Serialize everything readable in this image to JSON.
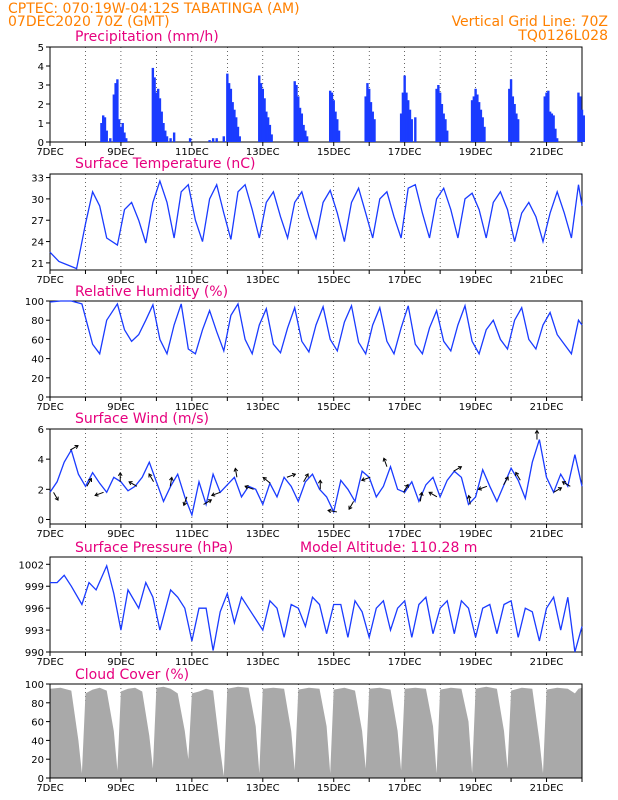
{
  "header": {
    "line1_left": "CPTEC:   070:19W-04:12S   TABATINGA (AM)",
    "line2_left": "07DEC2020 70Z (GMT)",
    "line2_right": "Vertical Grid Line: 70Z",
    "line3_right": "TQ0126L028"
  },
  "colors": {
    "header": "#ff8000",
    "panel_title": "#e6007e",
    "series": "#1a3bff",
    "bars": "#1a3bff",
    "cloud_fill": "#a9a9a9",
    "grid": "#000000"
  },
  "x_axis": {
    "day_labels": [
      "7DEC",
      "9DEC",
      "11DEC",
      "13DEC",
      "15DEC",
      "17DEC",
      "19DEC",
      "21DEC"
    ],
    "start_day": 7,
    "end_day": 22
  },
  "chart_data": [
    {
      "id": "precip",
      "type": "bar",
      "title": "Precipitation (mm/h)",
      "ylim": [
        0,
        5
      ],
      "yticks": [
        0,
        1,
        2,
        3,
        4,
        5
      ],
      "days": [
        8.45,
        8.5,
        8.55,
        8.6,
        8.7,
        8.8,
        8.85,
        8.9,
        8.95,
        9.0,
        9.05,
        9.1,
        9.15,
        9.9,
        9.95,
        10.0,
        10.05,
        10.1,
        10.15,
        10.2,
        10.25,
        10.3,
        10.4,
        10.5,
        10.95,
        11.5,
        11.6,
        11.7,
        11.9,
        12.0,
        12.05,
        12.1,
        12.15,
        12.2,
        12.25,
        12.3,
        12.35,
        12.9,
        12.95,
        13.0,
        13.05,
        13.1,
        13.15,
        13.2,
        13.25,
        13.9,
        13.95,
        14.0,
        14.05,
        14.1,
        14.15,
        14.2,
        14.25,
        14.9,
        14.95,
        15.0,
        15.05,
        15.1,
        15.15,
        15.9,
        15.95,
        16.0,
        16.05,
        16.1,
        16.15,
        16.9,
        16.95,
        17.0,
        17.05,
        17.1,
        17.15,
        17.2,
        17.3,
        17.9,
        17.95,
        18.0,
        18.05,
        18.1,
        18.15,
        18.2,
        18.9,
        18.95,
        19.0,
        19.05,
        19.1,
        19.15,
        19.2,
        19.25,
        19.95,
        20.0,
        20.05,
        20.1,
        20.15,
        20.2,
        20.95,
        21.0,
        21.05,
        21.1,
        21.15,
        21.2,
        21.25,
        21.3,
        21.9,
        21.95,
        22.0,
        22.05
      ],
      "values": [
        1.0,
        1.4,
        1.3,
        0.6,
        0.2,
        2.5,
        3.1,
        3.3,
        1.2,
        0.8,
        1.0,
        0.5,
        0.2,
        3.9,
        3.4,
        2.6,
        2.8,
        2.3,
        1.6,
        1.0,
        0.6,
        0.3,
        0.2,
        0.5,
        0.2,
        0.1,
        0.2,
        0.2,
        0.3,
        3.6,
        3.1,
        2.8,
        2.1,
        1.7,
        1.3,
        0.8,
        0.3,
        3.5,
        3.1,
        2.8,
        2.3,
        1.6,
        1.3,
        0.9,
        0.4,
        3.2,
        3.0,
        2.4,
        1.8,
        1.5,
        0.9,
        0.6,
        0.3,
        2.7,
        2.6,
        2.2,
        1.6,
        1.2,
        0.6,
        2.4,
        3.1,
        2.8,
        2.1,
        1.6,
        1.2,
        1.5,
        2.6,
        3.5,
        2.6,
        2.2,
        1.7,
        1.2,
        1.3,
        2.8,
        3.0,
        2.6,
        2.0,
        1.5,
        1.2,
        0.6,
        2.2,
        2.4,
        2.8,
        2.5,
        2.1,
        1.7,
        1.3,
        0.8,
        2.8,
        3.3,
        2.4,
        2.0,
        1.5,
        1.2,
        2.4,
        2.6,
        2.7,
        1.6,
        1.5,
        1.4,
        0.7,
        0.2,
        2.6,
        2.4,
        1.7,
        1.4
      ]
    },
    {
      "id": "temperature",
      "type": "line",
      "title": "Surface Temperature (nC)",
      "ylim": [
        20,
        33.5
      ],
      "yticks": [
        21,
        24,
        27,
        30,
        33
      ],
      "days": [
        7.0,
        7.25,
        7.5,
        7.75,
        8.0,
        8.2,
        8.4,
        8.6,
        8.9,
        9.1,
        9.3,
        9.5,
        9.7,
        9.9,
        10.1,
        10.3,
        10.5,
        10.7,
        10.9,
        11.1,
        11.3,
        11.5,
        11.7,
        11.9,
        12.1,
        12.3,
        12.5,
        12.7,
        12.9,
        13.1,
        13.3,
        13.5,
        13.7,
        13.9,
        14.1,
        14.3,
        14.5,
        14.7,
        14.9,
        15.1,
        15.3,
        15.5,
        15.7,
        15.9,
        16.1,
        16.3,
        16.5,
        16.7,
        16.9,
        17.1,
        17.3,
        17.5,
        17.7,
        17.9,
        18.1,
        18.3,
        18.5,
        18.7,
        18.9,
        19.1,
        19.3,
        19.5,
        19.7,
        19.9,
        20.1,
        20.3,
        20.5,
        20.7,
        20.9,
        21.1,
        21.3,
        21.5,
        21.7,
        21.9,
        22.0
      ],
      "values": [
        22.5,
        21.2,
        20.7,
        20.2,
        26.5,
        31.0,
        29.0,
        24.5,
        23.5,
        28.5,
        29.5,
        27.0,
        23.8,
        29.5,
        32.5,
        29.5,
        24.5,
        31.0,
        32.0,
        27.0,
        24.0,
        30.0,
        32.0,
        28.0,
        24.3,
        31.0,
        32.0,
        28.5,
        24.5,
        29.5,
        31.0,
        27.5,
        24.5,
        29.5,
        31.0,
        27.5,
        24.5,
        29.5,
        31.2,
        28.0,
        24.0,
        29.5,
        31.5,
        28.0,
        24.5,
        30.0,
        31.0,
        27.5,
        24.5,
        31.5,
        32.0,
        28.0,
        24.5,
        30.0,
        31.5,
        28.5,
        24.5,
        30.0,
        30.8,
        28.5,
        24.5,
        29.5,
        31.0,
        28.5,
        24.0,
        28.0,
        29.5,
        27.5,
        24.0,
        28.0,
        31.0,
        28.0,
        24.5,
        32.0,
        29.0
      ]
    },
    {
      "id": "humidity",
      "type": "line",
      "title": "Relative Humidity (%)",
      "ylim": [
        0,
        100
      ],
      "yticks": [
        0,
        20,
        40,
        60,
        80,
        100
      ],
      "days": [
        7.0,
        7.3,
        7.6,
        7.9,
        8.2,
        8.4,
        8.6,
        8.9,
        9.1,
        9.3,
        9.5,
        9.7,
        9.9,
        10.1,
        10.3,
        10.5,
        10.7,
        10.9,
        11.1,
        11.3,
        11.5,
        11.7,
        11.9,
        12.1,
        12.3,
        12.5,
        12.7,
        12.9,
        13.1,
        13.3,
        13.5,
        13.7,
        13.9,
        14.1,
        14.3,
        14.5,
        14.7,
        14.9,
        15.1,
        15.3,
        15.5,
        15.7,
        15.9,
        16.1,
        16.3,
        16.5,
        16.7,
        16.9,
        17.1,
        17.3,
        17.5,
        17.7,
        17.9,
        18.1,
        18.3,
        18.5,
        18.7,
        18.9,
        19.1,
        19.3,
        19.5,
        19.7,
        19.9,
        20.1,
        20.3,
        20.5,
        20.7,
        20.9,
        21.1,
        21.3,
        21.5,
        21.7,
        21.9,
        22.0
      ],
      "values": [
        99,
        100,
        100,
        97,
        55,
        45,
        80,
        97,
        70,
        58,
        65,
        80,
        96,
        60,
        45,
        75,
        97,
        50,
        45,
        70,
        90,
        68,
        48,
        85,
        97,
        60,
        45,
        75,
        92,
        55,
        46,
        72,
        93,
        58,
        47,
        75,
        94,
        60,
        48,
        78,
        95,
        57,
        45,
        75,
        93,
        58,
        45,
        72,
        95,
        55,
        45,
        72,
        90,
        58,
        48,
        75,
        95,
        58,
        45,
        70,
        80,
        60,
        50,
        80,
        93,
        60,
        50,
        75,
        88,
        65,
        55,
        45,
        80,
        75
      ]
    },
    {
      "id": "wind",
      "type": "line",
      "title": "Surface Wind (m/s)",
      "ylim": [
        -0.3,
        6
      ],
      "yticks": [
        0,
        2,
        4,
        6
      ],
      "days": [
        7.0,
        7.2,
        7.4,
        7.6,
        7.8,
        8.0,
        8.2,
        8.4,
        8.6,
        8.8,
        9.0,
        9.2,
        9.4,
        9.6,
        9.8,
        10.0,
        10.2,
        10.4,
        10.6,
        10.8,
        11.0,
        11.2,
        11.4,
        11.6,
        11.8,
        12.0,
        12.2,
        12.4,
        12.6,
        12.8,
        13.0,
        13.2,
        13.4,
        13.6,
        13.8,
        14.0,
        14.2,
        14.4,
        14.6,
        14.8,
        15.0,
        15.2,
        15.4,
        15.6,
        15.8,
        16.0,
        16.2,
        16.4,
        16.6,
        16.8,
        17.0,
        17.2,
        17.4,
        17.6,
        17.8,
        18.0,
        18.2,
        18.4,
        18.6,
        18.8,
        19.0,
        19.2,
        19.4,
        19.6,
        19.8,
        20.0,
        20.2,
        20.4,
        20.6,
        20.8,
        21.0,
        21.2,
        21.4,
        21.6,
        21.8,
        22.0
      ],
      "values": [
        1.8,
        2.5,
        3.8,
        4.6,
        3.0,
        2.2,
        3.1,
        2.4,
        1.8,
        2.8,
        2.5,
        1.9,
        2.2,
        2.8,
        3.8,
        2.5,
        1.2,
        2.2,
        3.0,
        1.5,
        0.3,
        2.5,
        1.0,
        3.0,
        1.8,
        2.3,
        2.8,
        1.5,
        2.2,
        2.0,
        1.0,
        2.4,
        1.5,
        2.8,
        2.2,
        1.2,
        2.5,
        3.0,
        2.0,
        1.5,
        0.5,
        2.6,
        2.0,
        1.2,
        3.2,
        2.8,
        1.5,
        2.2,
        3.5,
        2.0,
        1.8,
        2.5,
        1.2,
        2.3,
        2.8,
        1.5,
        2.6,
        3.2,
        2.8,
        1.0,
        1.5,
        3.3,
        2.2,
        1.2,
        2.3,
        3.4,
        2.6,
        1.4,
        3.8,
        5.3,
        2.8,
        1.8,
        3.0,
        2.2,
        4.3,
        2.2
      ]
    },
    {
      "id": "pressure",
      "type": "line",
      "title": "Surface Pressure (hPa)",
      "annotation": "Model Altitude: 110.28 m",
      "ylim": [
        990,
        1003
      ],
      "yticks": [
        990,
        993,
        996,
        999,
        1002
      ],
      "days": [
        7.0,
        7.2,
        7.4,
        7.6,
        7.9,
        8.1,
        8.3,
        8.6,
        8.8,
        9.0,
        9.2,
        9.5,
        9.7,
        9.9,
        10.1,
        10.4,
        10.6,
        10.8,
        11.0,
        11.2,
        11.4,
        11.6,
        11.8,
        12.0,
        12.2,
        12.4,
        12.6,
        12.8,
        13.0,
        13.2,
        13.4,
        13.6,
        13.8,
        14.0,
        14.2,
        14.4,
        14.6,
        14.8,
        15.0,
        15.2,
        15.4,
        15.6,
        15.8,
        16.0,
        16.2,
        16.4,
        16.6,
        16.8,
        17.0,
        17.2,
        17.4,
        17.6,
        17.8,
        18.0,
        18.2,
        18.4,
        18.6,
        18.8,
        19.0,
        19.2,
        19.4,
        19.6,
        19.8,
        20.0,
        20.2,
        20.4,
        20.6,
        20.8,
        21.0,
        21.2,
        21.4,
        21.6,
        21.8,
        22.0
      ],
      "values": [
        999.5,
        999.5,
        1000.5,
        999.0,
        996.5,
        999.5,
        998.5,
        1001.8,
        998.0,
        993.0,
        998.5,
        996.0,
        999.5,
        997.5,
        993.0,
        998.5,
        997.5,
        996.0,
        991.5,
        996.0,
        996.0,
        990.2,
        995.5,
        998.0,
        994.0,
        997.5,
        996.0,
        994.5,
        993.0,
        997.0,
        996.0,
        992.0,
        996.5,
        996.0,
        993.5,
        997.5,
        996.5,
        992.5,
        996.5,
        996.5,
        992.0,
        997.0,
        995.5,
        992.0,
        996.0,
        997.0,
        993.0,
        996.0,
        997.0,
        992.0,
        996.5,
        997.5,
        992.5,
        996.0,
        997.0,
        992.5,
        997.0,
        996.0,
        992.0,
        996.0,
        996.5,
        992.5,
        996.5,
        997.0,
        992.0,
        996.0,
        995.5,
        991.5,
        996.0,
        997.5,
        993.0,
        997.5,
        990.0,
        993.5
      ]
    },
    {
      "id": "cloud",
      "type": "area",
      "title": "Cloud Cover (%)",
      "ylim": [
        0,
        100
      ],
      "yticks": [
        0,
        20,
        40,
        60,
        80,
        100
      ],
      "days": [
        7.0,
        7.3,
        7.6,
        7.8,
        7.9,
        8.0,
        8.2,
        8.4,
        8.6,
        8.8,
        8.9,
        9.0,
        9.2,
        9.4,
        9.6,
        9.8,
        9.9,
        10.0,
        10.2,
        10.4,
        10.6,
        10.8,
        10.9,
        11.0,
        11.2,
        11.4,
        11.6,
        11.8,
        11.9,
        12.0,
        12.3,
        12.6,
        12.8,
        12.9,
        13.0,
        13.3,
        13.6,
        13.8,
        13.9,
        14.0,
        14.3,
        14.6,
        14.8,
        14.9,
        15.0,
        15.3,
        15.6,
        15.8,
        15.9,
        16.0,
        16.3,
        16.6,
        16.8,
        16.9,
        17.0,
        17.3,
        17.6,
        17.8,
        17.9,
        18.0,
        18.3,
        18.6,
        18.8,
        18.9,
        19.0,
        19.3,
        19.6,
        19.8,
        19.9,
        20.0,
        20.3,
        20.6,
        20.8,
        20.9,
        21.0,
        21.3,
        21.6,
        21.8,
        21.9,
        22.0
      ],
      "values": [
        95,
        96,
        93,
        40,
        5,
        90,
        94,
        96,
        93,
        50,
        8,
        92,
        95,
        96,
        92,
        45,
        10,
        96,
        97,
        95,
        90,
        50,
        20,
        90,
        92,
        95,
        93,
        30,
        2,
        95,
        97,
        96,
        55,
        5,
        95,
        96,
        95,
        50,
        8,
        94,
        96,
        95,
        55,
        5,
        94,
        96,
        93,
        50,
        10,
        95,
        96,
        94,
        50,
        8,
        95,
        96,
        95,
        55,
        5,
        94,
        96,
        95,
        60,
        5,
        95,
        97,
        95,
        50,
        10,
        93,
        96,
        95,
        40,
        5,
        94,
        96,
        95,
        90,
        95,
        96
      ]
    }
  ]
}
